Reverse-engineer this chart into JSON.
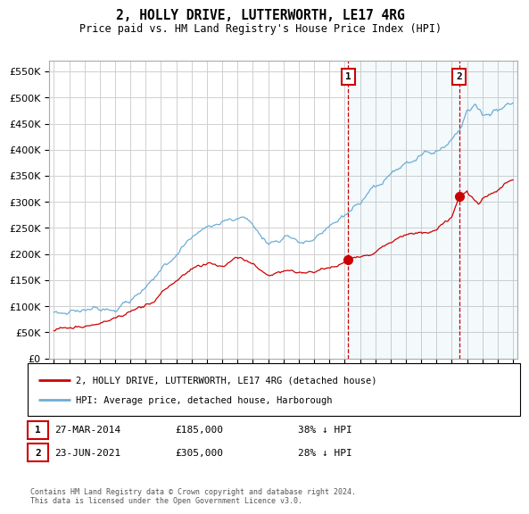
{
  "title": "2, HOLLY DRIVE, LUTTERWORTH, LE17 4RG",
  "subtitle": "Price paid vs. HM Land Registry's House Price Index (HPI)",
  "legend_line1": "2, HOLLY DRIVE, LUTTERWORTH, LE17 4RG (detached house)",
  "legend_line2": "HPI: Average price, detached house, Harborough",
  "footnote": "Contains HM Land Registry data © Crown copyright and database right 2024.\nThis data is licensed under the Open Government Licence v3.0.",
  "transaction1_date": "27-MAR-2014",
  "transaction1_price": "£185,000",
  "transaction1_pct": "38% ↓ HPI",
  "transaction1_year": 2014.23,
  "transaction2_date": "23-JUN-2021",
  "transaction2_price": "£305,000",
  "transaction2_pct": "28% ↓ HPI",
  "transaction2_year": 2021.48,
  "hpi_color": "#6baed6",
  "price_color": "#cc0000",
  "background_color": "#ffffff",
  "grid_color": "#d0d0d0",
  "annotation_box_color": "#cc0000",
  "ylim": [
    0,
    570000
  ],
  "yticks": [
    0,
    50000,
    100000,
    150000,
    200000,
    250000,
    300000,
    350000,
    400000,
    450000,
    500000,
    550000
  ],
  "xlim_left": 1994.7,
  "xlim_right": 2025.3
}
